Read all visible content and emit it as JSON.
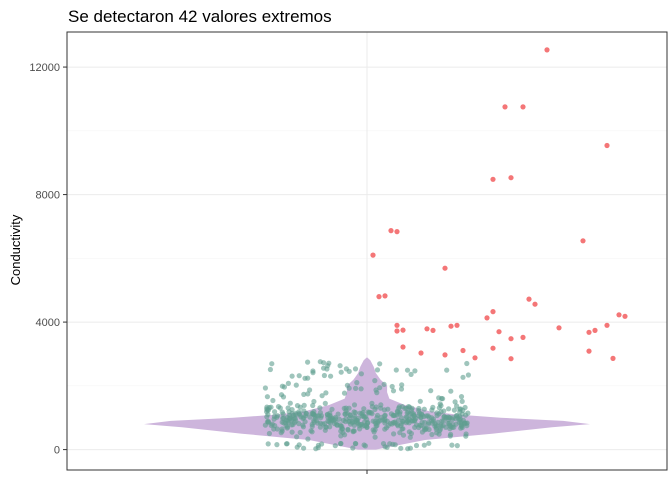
{
  "chart_data": {
    "type": "scatter",
    "title": "Se detectaron 42 valores extremos",
    "xlabel": "",
    "ylabel": "Conductivity",
    "ylim": [
      -640,
      13100
    ],
    "y_ticks": [
      0,
      4000,
      8000,
      12000
    ],
    "y_tick_labels": [
      "0",
      "4000",
      "8000",
      "12000"
    ],
    "x_ticks": [
      1
    ],
    "x_tick_labels": [
      ""
    ],
    "grid": true,
    "legend": "none",
    "colors": {
      "violin": "#cdb5dc",
      "normal_points": "#5f9e8f",
      "outlier_points": "#f0484a",
      "panel_border": "#333333",
      "grid_major": "#ebebeb",
      "grid_minor": "#f5f5f5"
    },
    "violin_density": [
      [
        0,
        0.04
      ],
      [
        300,
        0.26
      ],
      [
        500,
        0.56
      ],
      [
        700,
        0.83
      ],
      [
        800,
        1.0
      ],
      [
        900,
        0.88
      ],
      [
        1000,
        0.6
      ],
      [
        1100,
        0.4
      ],
      [
        1200,
        0.28
      ],
      [
        1400,
        0.17
      ],
      [
        1600,
        0.1
      ],
      [
        1800,
        0.09
      ],
      [
        2000,
        0.09
      ],
      [
        2200,
        0.06
      ],
      [
        2400,
        0.04
      ],
      [
        2600,
        0.03
      ],
      [
        2800,
        0.015
      ],
      [
        2900,
        0.0
      ]
    ],
    "outliers": [
      {
        "x": 0.8,
        "y": 12540
      },
      {
        "x": 0.73,
        "y": 10750
      },
      {
        "x": 0.76,
        "y": 10750
      },
      {
        "x": 0.9,
        "y": 9540
      },
      {
        "x": 0.71,
        "y": 8480
      },
      {
        "x": 0.74,
        "y": 8530
      },
      {
        "x": 0.54,
        "y": 6870
      },
      {
        "x": 0.55,
        "y": 6840
      },
      {
        "x": 0.51,
        "y": 6100
      },
      {
        "x": 0.63,
        "y": 5690
      },
      {
        "x": 0.86,
        "y": 6550
      },
      {
        "x": 0.52,
        "y": 4800
      },
      {
        "x": 0.53,
        "y": 4820
      },
      {
        "x": 0.77,
        "y": 4720
      },
      {
        "x": 0.78,
        "y": 4560
      },
      {
        "x": 0.71,
        "y": 4330
      },
      {
        "x": 0.7,
        "y": 4130
      },
      {
        "x": 0.92,
        "y": 4230
      },
      {
        "x": 0.93,
        "y": 4180
      },
      {
        "x": 0.55,
        "y": 3900
      },
      {
        "x": 0.56,
        "y": 3750
      },
      {
        "x": 0.55,
        "y": 3720
      },
      {
        "x": 0.6,
        "y": 3790
      },
      {
        "x": 0.61,
        "y": 3740
      },
      {
        "x": 0.64,
        "y": 3870
      },
      {
        "x": 0.65,
        "y": 3900
      },
      {
        "x": 0.72,
        "y": 3700
      },
      {
        "x": 0.74,
        "y": 3480
      },
      {
        "x": 0.76,
        "y": 3520
      },
      {
        "x": 0.82,
        "y": 3820
      },
      {
        "x": 0.87,
        "y": 3680
      },
      {
        "x": 0.88,
        "y": 3740
      },
      {
        "x": 0.9,
        "y": 3900
      },
      {
        "x": 0.56,
        "y": 3220
      },
      {
        "x": 0.59,
        "y": 3030
      },
      {
        "x": 0.63,
        "y": 2970
      },
      {
        "x": 0.66,
        "y": 3110
      },
      {
        "x": 0.68,
        "y": 2880
      },
      {
        "x": 0.71,
        "y": 3180
      },
      {
        "x": 0.74,
        "y": 2850
      },
      {
        "x": 0.87,
        "y": 3090
      },
      {
        "x": 0.91,
        "y": 2860
      }
    ],
    "normal_point_count": 520,
    "normal_x_range": [
      0.33,
      0.67
    ],
    "normal_y_range": [
      0,
      2800
    ]
  }
}
